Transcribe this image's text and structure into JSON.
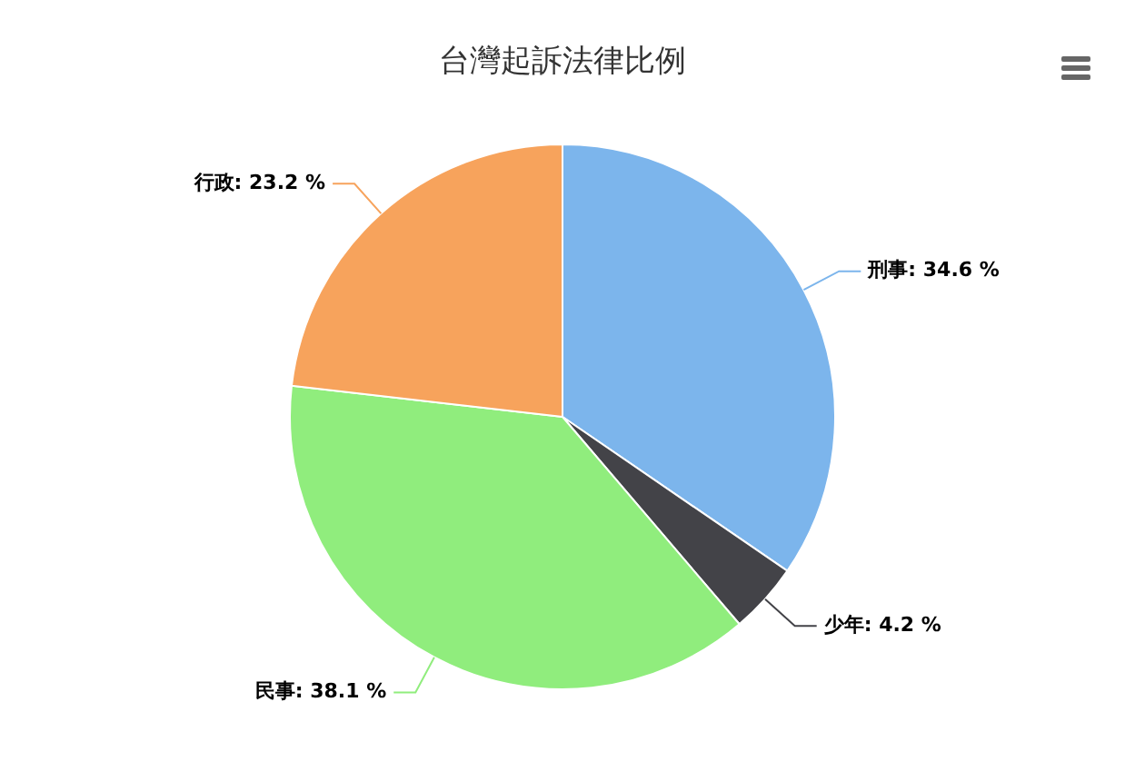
{
  "chart_data": {
    "type": "pie",
    "title": "台灣起訴法律比例",
    "categories": [
      "刑事",
      "少年",
      "民事",
      "行政"
    ],
    "values": [
      34.6,
      4.2,
      38.1,
      23.2
    ],
    "value_labels": [
      "34.6 %",
      "4.2 %",
      "38.1 %",
      "23.2 %"
    ],
    "colors": [
      "#7cb5ec",
      "#434348",
      "#90ed7d",
      "#f7a35c"
    ]
  }
}
